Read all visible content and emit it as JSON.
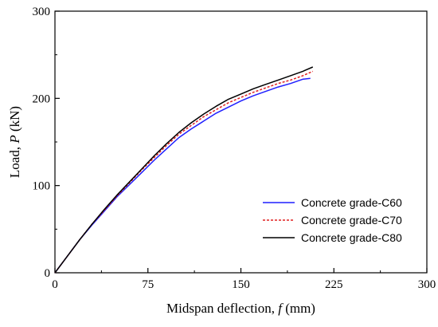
{
  "chart_data": {
    "type": "line",
    "title": "",
    "xlabel": {
      "prefix": "Midspan deflection, ",
      "symbol": "f",
      "suffix": " (mm)"
    },
    "ylabel": {
      "prefix": "Load, ",
      "symbol": "P",
      "suffix": " (kN)"
    },
    "xlim": [
      0,
      300
    ],
    "ylim": [
      0,
      300
    ],
    "xticks": [
      "0",
      "75",
      "150",
      "225",
      "300"
    ],
    "yticks": [
      "0",
      "100",
      "200",
      "300"
    ],
    "grid": false,
    "legend_position": "bottom-right",
    "series": [
      {
        "name": "Concrete grade-C60",
        "color": "#1f1fff",
        "dash": "solid",
        "x": [
          0,
          10,
          20,
          30,
          40,
          50,
          60,
          70,
          80,
          90,
          100,
          110,
          120,
          130,
          140,
          150,
          160,
          170,
          180,
          190,
          200,
          206
        ],
        "y": [
          0,
          19,
          38,
          55,
          71,
          87,
          101,
          115,
          129,
          142,
          155,
          165,
          174,
          183,
          190,
          197,
          203,
          208,
          213,
          217,
          222,
          223
        ]
      },
      {
        "name": "Concrete grade-C70",
        "color": "#e02020",
        "dash": "dashed",
        "x": [
          0,
          10,
          20,
          30,
          40,
          50,
          60,
          70,
          80,
          90,
          100,
          110,
          120,
          130,
          140,
          150,
          160,
          170,
          180,
          190,
          200,
          208
        ],
        "y": [
          0,
          19,
          38,
          56,
          72,
          88,
          103,
          118,
          132,
          146,
          159,
          169,
          179,
          187,
          195,
          201,
          207,
          212,
          217,
          221,
          226,
          231
        ]
      },
      {
        "name": "Concrete grade-C80",
        "color": "#000000",
        "dash": "solid",
        "x": [
          0,
          10,
          20,
          30,
          40,
          50,
          60,
          70,
          80,
          90,
          100,
          110,
          120,
          130,
          140,
          150,
          160,
          170,
          180,
          190,
          200,
          208
        ],
        "y": [
          0,
          19,
          38,
          56,
          73,
          89,
          104,
          119,
          134,
          148,
          161,
          172,
          182,
          191,
          199,
          205,
          211,
          216,
          221,
          226,
          231,
          236
        ]
      }
    ]
  }
}
